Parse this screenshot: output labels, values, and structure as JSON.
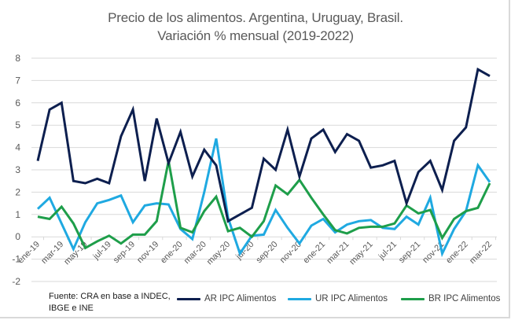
{
  "chart_data": {
    "type": "line",
    "title": "Precio de los alimentos. Argentina, Uruguay, Brasil.",
    "subtitle": "Variación % mensual (2019-2022)",
    "xlabel": "",
    "ylabel": "",
    "ylim": [
      -2,
      8
    ],
    "yticks": [
      "8",
      "7",
      "6",
      "5",
      "4",
      "3",
      "2",
      "1",
      "0",
      "-1",
      "-2"
    ],
    "ytick_values": [
      8,
      7,
      6,
      5,
      4,
      3,
      2,
      1,
      0,
      -1,
      -2
    ],
    "grid": true,
    "legend_position": "bottom",
    "x": [
      "ene-19",
      "feb-19",
      "mar-19",
      "abr-19",
      "may-19",
      "jun-19",
      "jul-19",
      "ago-19",
      "sep-19",
      "oct-19",
      "nov-19",
      "dic-19",
      "ene-20",
      "feb-20",
      "mar-20",
      "abr-20",
      "may-20",
      "jun-20",
      "jul-20",
      "ago-20",
      "sep-20",
      "oct-20",
      "nov-20",
      "dic-20",
      "ene-21",
      "feb-21",
      "mar-21",
      "abr-21",
      "may-21",
      "jun-21",
      "jul-21",
      "ago-21",
      "sep-21",
      "oct-21",
      "nov-21",
      "dic-21",
      "ene-22",
      "feb-22",
      "mar-22"
    ],
    "xtick_labels": [
      "ene-19",
      "mar-19",
      "may-19",
      "jul-19",
      "sep-19",
      "nov-19",
      "ene-20",
      "mar-20",
      "may-20",
      "jul-20",
      "sep-20",
      "nov-20",
      "ene-21",
      "mar-21",
      "may-21",
      "jul-21",
      "sep-21",
      "nov-21",
      "ene-22",
      "mar-22"
    ],
    "series": [
      {
        "name": "AR IPC Alimentos",
        "color": "#0d1f4f",
        "values": [
          3.4,
          5.7,
          6.0,
          2.5,
          2.4,
          2.6,
          2.4,
          4.5,
          5.7,
          2.5,
          5.3,
          3.3,
          4.7,
          2.7,
          3.9,
          3.2,
          0.7,
          1.0,
          1.3,
          3.5,
          3.0,
          4.8,
          2.7,
          4.4,
          4.8,
          3.8,
          4.6,
          4.3,
          3.1,
          3.2,
          3.4,
          1.5,
          2.9,
          3.4,
          2.1,
          4.3,
          4.9,
          7.5,
          7.2
        ]
      },
      {
        "name": "UR IPC Alimentos",
        "color": "#1fa9e1",
        "values": [
          1.25,
          1.75,
          0.6,
          -0.55,
          0.65,
          1.5,
          1.65,
          1.85,
          0.65,
          1.4,
          1.5,
          1.45,
          0.35,
          -0.1,
          2.0,
          4.4,
          0.85,
          -0.75,
          0.05,
          0.1,
          1.2,
          0.4,
          -0.3,
          0.5,
          0.8,
          0.2,
          0.55,
          0.7,
          0.75,
          0.4,
          0.35,
          0.9,
          0.55,
          1.75,
          -0.75,
          0.35,
          1.15,
          3.2,
          2.45
        ]
      },
      {
        "name": "BR IPC Alimentos",
        "color": "#1e9e4a",
        "values": [
          0.9,
          0.8,
          1.35,
          0.6,
          -0.5,
          -0.2,
          0.05,
          -0.3,
          0.1,
          0.1,
          0.7,
          3.4,
          0.4,
          0.2,
          1.15,
          1.8,
          0.25,
          0.4,
          0.0,
          0.7,
          2.3,
          1.9,
          2.55,
          1.75,
          1.0,
          0.3,
          0.15,
          0.4,
          0.45,
          0.45,
          0.6,
          1.4,
          1.05,
          1.2,
          -0.05,
          0.8,
          1.15,
          1.3,
          2.4
        ]
      }
    ],
    "annotation": {
      "line1": "Fuente: CRA en base a INDEC,",
      "line2": "IBGE  e INE"
    }
  }
}
